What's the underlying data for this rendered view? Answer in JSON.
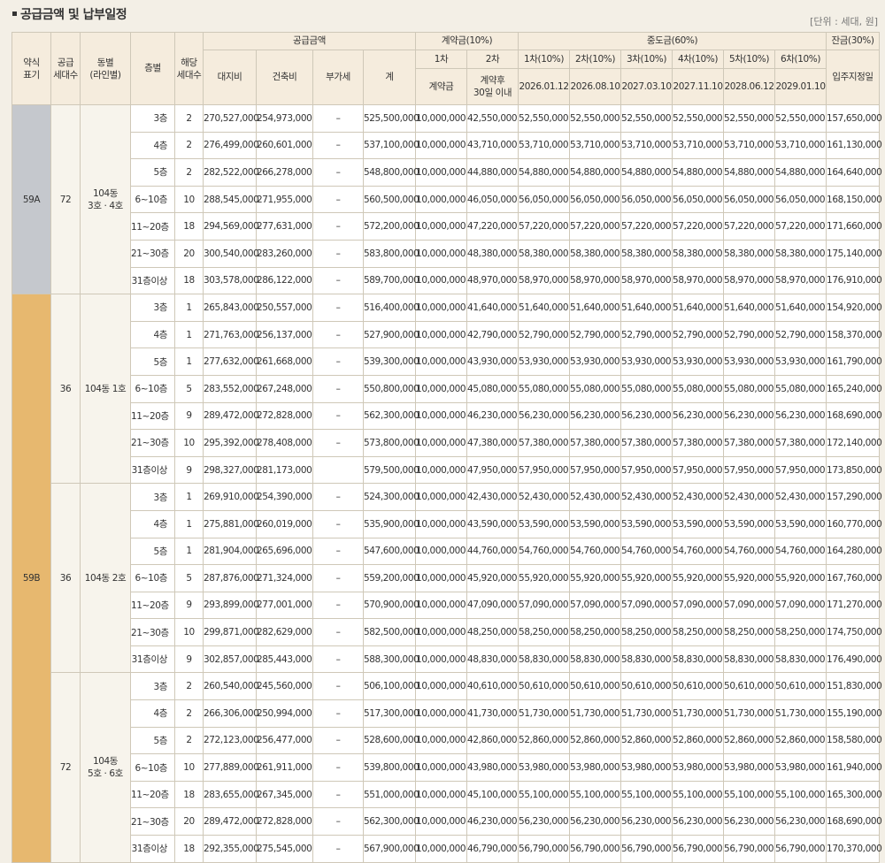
{
  "title": "공급금액 및 납부일정",
  "unit": "[단위 : 세대, 원]",
  "headers": {
    "type": "약식\n표기",
    "supply_units": "공급\n세대수",
    "building": "동별\n(라인별)",
    "floor": "층별",
    "units": "해당\n세대수",
    "supply_price": "공급금액",
    "land": "대지비",
    "building_cost": "건축비",
    "vat": "부가세",
    "total": "계",
    "deposit": "계약금(10%)",
    "first": "1차",
    "second": "2차",
    "deposit_label": "계약금",
    "after_contract": "계약후\n30일 이내",
    "middle": "중도금(60%)",
    "m_labels": [
      "1차(10%)",
      "2차(10%)",
      "3차(10%)",
      "4차(10%)",
      "5차(10%)",
      "6차(10%)"
    ],
    "m_dates": [
      "2026.01.12",
      "2026.08.10",
      "2027.03.10",
      "2027.11.10",
      "2028.06.12",
      "2029.01.10"
    ],
    "balance": "잔금(30%)",
    "movein": "입주지정일"
  },
  "groups": [
    {
      "type": "59A",
      "units": "72",
      "building": "104동\n3호 · 4호",
      "rows": [
        {
          "floor": "3층",
          "units": "2",
          "land": "270,527,000",
          "building": "254,973,000",
          "vat": "–",
          "total": "525,500,000",
          "c1": "10,000,000",
          "c2": "42,550,000",
          "m": "52,550,000",
          "bal": "157,650,000"
        },
        {
          "floor": "4층",
          "units": "2",
          "land": "276,499,000",
          "building": "260,601,000",
          "vat": "–",
          "total": "537,100,000",
          "c1": "10,000,000",
          "c2": "43,710,000",
          "m": "53,710,000",
          "bal": "161,130,000"
        },
        {
          "floor": "5층",
          "units": "2",
          "land": "282,522,000",
          "building": "266,278,000",
          "vat": "–",
          "total": "548,800,000",
          "c1": "10,000,000",
          "c2": "44,880,000",
          "m": "54,880,000",
          "bal": "164,640,000"
        },
        {
          "floor": "6~10층",
          "units": "10",
          "land": "288,545,000",
          "building": "271,955,000",
          "vat": "–",
          "total": "560,500,000",
          "c1": "10,000,000",
          "c2": "46,050,000",
          "m": "56,050,000",
          "bal": "168,150,000"
        },
        {
          "floor": "11~20층",
          "units": "18",
          "land": "294,569,000",
          "building": "277,631,000",
          "vat": "–",
          "total": "572,200,000",
          "c1": "10,000,000",
          "c2": "47,220,000",
          "m": "57,220,000",
          "bal": "171,660,000"
        },
        {
          "floor": "21~30층",
          "units": "20",
          "land": "300,540,000",
          "building": "283,260,000",
          "vat": "–",
          "total": "583,800,000",
          "c1": "10,000,000",
          "c2": "48,380,000",
          "m": "58,380,000",
          "bal": "175,140,000"
        },
        {
          "floor": "31층이상",
          "units": "18",
          "land": "303,578,000",
          "building": "286,122,000",
          "vat": "–",
          "total": "589,700,000",
          "c1": "10,000,000",
          "c2": "48,970,000",
          "m": "58,970,000",
          "bal": "176,910,000"
        }
      ]
    },
    {
      "type": "59B",
      "units": "36",
      "building": "104동 1호",
      "rows": [
        {
          "floor": "3층",
          "units": "1",
          "land": "265,843,000",
          "building": "250,557,000",
          "vat": "–",
          "total": "516,400,000",
          "c1": "10,000,000",
          "c2": "41,640,000",
          "m": "51,640,000",
          "bal": "154,920,000"
        },
        {
          "floor": "4층",
          "units": "1",
          "land": "271,763,000",
          "building": "256,137,000",
          "vat": "–",
          "total": "527,900,000",
          "c1": "10,000,000",
          "c2": "42,790,000",
          "m": "52,790,000",
          "bal": "158,370,000"
        },
        {
          "floor": "5층",
          "units": "1",
          "land": "277,632,000",
          "building": "261,668,000",
          "vat": "–",
          "total": "539,300,000",
          "c1": "10,000,000",
          "c2": "43,930,000",
          "m": "53,930,000",
          "bal": "161,790,000"
        },
        {
          "floor": "6~10층",
          "units": "5",
          "land": "283,552,000",
          "building": "267,248,000",
          "vat": "–",
          "total": "550,800,000",
          "c1": "10,000,000",
          "c2": "45,080,000",
          "m": "55,080,000",
          "bal": "165,240,000"
        },
        {
          "floor": "11~20층",
          "units": "9",
          "land": "289,472,000",
          "building": "272,828,000",
          "vat": "–",
          "total": "562,300,000",
          "c1": "10,000,000",
          "c2": "46,230,000",
          "m": "56,230,000",
          "bal": "168,690,000"
        },
        {
          "floor": "21~30층",
          "units": "10",
          "land": "295,392,000",
          "building": "278,408,000",
          "vat": "–",
          "total": "573,800,000",
          "c1": "10,000,000",
          "c2": "47,380,000",
          "m": "57,380,000",
          "bal": "172,140,000"
        },
        {
          "floor": "31층이상",
          "units": "9",
          "land": "298,327,000",
          "building": "281,173,000",
          "vat": "",
          "total": "579,500,000",
          "c1": "10,000,000",
          "c2": "47,950,000",
          "m": "57,950,000",
          "bal": "173,850,000"
        }
      ]
    },
    {
      "type": "59B",
      "units": "36",
      "building": "104동 2호",
      "rows": [
        {
          "floor": "3층",
          "units": "1",
          "land": "269,910,000",
          "building": "254,390,000",
          "vat": "–",
          "total": "524,300,000",
          "c1": "10,000,000",
          "c2": "42,430,000",
          "m": "52,430,000",
          "bal": "157,290,000"
        },
        {
          "floor": "4층",
          "units": "1",
          "land": "275,881,000",
          "building": "260,019,000",
          "vat": "–",
          "total": "535,900,000",
          "c1": "10,000,000",
          "c2": "43,590,000",
          "m": "53,590,000",
          "bal": "160,770,000"
        },
        {
          "floor": "5층",
          "units": "1",
          "land": "281,904,000",
          "building": "265,696,000",
          "vat": "–",
          "total": "547,600,000",
          "c1": "10,000,000",
          "c2": "44,760,000",
          "m": "54,760,000",
          "bal": "164,280,000"
        },
        {
          "floor": "6~10층",
          "units": "5",
          "land": "287,876,000",
          "building": "271,324,000",
          "vat": "–",
          "total": "559,200,000",
          "c1": "10,000,000",
          "c2": "45,920,000",
          "m": "55,920,000",
          "bal": "167,760,000"
        },
        {
          "floor": "11~20층",
          "units": "9",
          "land": "293,899,000",
          "building": "277,001,000",
          "vat": "–",
          "total": "570,900,000",
          "c1": "10,000,000",
          "c2": "47,090,000",
          "m": "57,090,000",
          "bal": "171,270,000"
        },
        {
          "floor": "21~30층",
          "units": "10",
          "land": "299,871,000",
          "building": "282,629,000",
          "vat": "–",
          "total": "582,500,000",
          "c1": "10,000,000",
          "c2": "48,250,000",
          "m": "58,250,000",
          "bal": "174,750,000"
        },
        {
          "floor": "31층이상",
          "units": "9",
          "land": "302,857,000",
          "building": "285,443,000",
          "vat": "–",
          "total": "588,300,000",
          "c1": "10,000,000",
          "c2": "48,830,000",
          "m": "58,830,000",
          "bal": "176,490,000"
        }
      ]
    },
    {
      "type": "59B",
      "units": "72",
      "building": "104동\n5호 · 6호",
      "rows": [
        {
          "floor": "3층",
          "units": "2",
          "land": "260,540,000",
          "building": "245,560,000",
          "vat": "–",
          "total": "506,100,000",
          "c1": "10,000,000",
          "c2": "40,610,000",
          "m": "50,610,000",
          "bal": "151,830,000"
        },
        {
          "floor": "4층",
          "units": "2",
          "land": "266,306,000",
          "building": "250,994,000",
          "vat": "–",
          "total": "517,300,000",
          "c1": "10,000,000",
          "c2": "41,730,000",
          "m": "51,730,000",
          "bal": "155,190,000"
        },
        {
          "floor": "5층",
          "units": "2",
          "land": "272,123,000",
          "building": "256,477,000",
          "vat": "–",
          "total": "528,600,000",
          "c1": "10,000,000",
          "c2": "42,860,000",
          "m": "52,860,000",
          "bal": "158,580,000"
        },
        {
          "floor": "6~10층",
          "units": "10",
          "land": "277,889,000",
          "building": "261,911,000",
          "vat": "–",
          "total": "539,800,000",
          "c1": "10,000,000",
          "c2": "43,980,000",
          "m": "53,980,000",
          "bal": "161,940,000"
        },
        {
          "floor": "11~20층",
          "units": "18",
          "land": "283,655,000",
          "building": "267,345,000",
          "vat": "–",
          "total": "551,000,000",
          "c1": "10,000,000",
          "c2": "45,100,000",
          "m": "55,100,000",
          "bal": "165,300,000"
        },
        {
          "floor": "21~30층",
          "units": "20",
          "land": "289,472,000",
          "building": "272,828,000",
          "vat": "–",
          "total": "562,300,000",
          "c1": "10,000,000",
          "c2": "46,230,000",
          "m": "56,230,000",
          "bal": "168,690,000"
        },
        {
          "floor": "31층이상",
          "units": "18",
          "land": "292,355,000",
          "building": "275,545,000",
          "vat": "–",
          "total": "567,900,000",
          "c1": "10,000,000",
          "c2": "46,790,000",
          "m": "56,790,000",
          "bal": "170,370,000"
        }
      ]
    }
  ]
}
